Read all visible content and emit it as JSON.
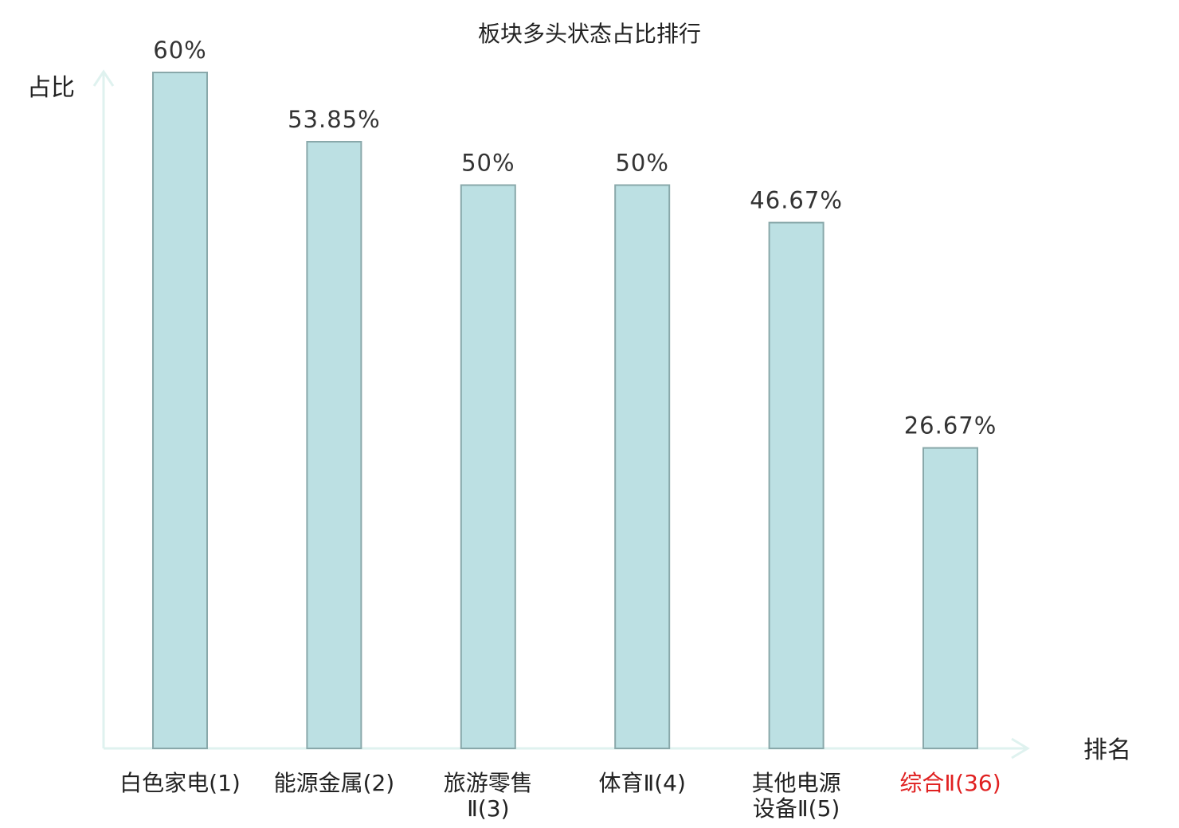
{
  "chart_data": {
    "type": "bar",
    "title": "板块多头状态占比排行",
    "ylabel": "占比",
    "xlabel": "排名",
    "ylim": [
      0,
      60
    ],
    "grid": false,
    "categories": [
      [
        "白色家电(1)"
      ],
      [
        "能源金属(2)"
      ],
      [
        "旅游零售",
        "Ⅱ(3)"
      ],
      [
        "体育Ⅱ(4)"
      ],
      [
        "其他电源",
        "设备Ⅱ(5)"
      ],
      [
        "综合Ⅱ(36)"
      ]
    ],
    "values": [
      60,
      53.85,
      50,
      50,
      46.67,
      26.67
    ],
    "value_labels": [
      "60%",
      "53.85%",
      "50%",
      "50%",
      "46.67%",
      "26.67%"
    ],
    "highlight_index": 5,
    "colors": {
      "bar_fill": "#bce0e3",
      "bar_stroke": "#89a8aa",
      "axis": "#dff2ef",
      "highlight_text": "#e02020"
    }
  }
}
